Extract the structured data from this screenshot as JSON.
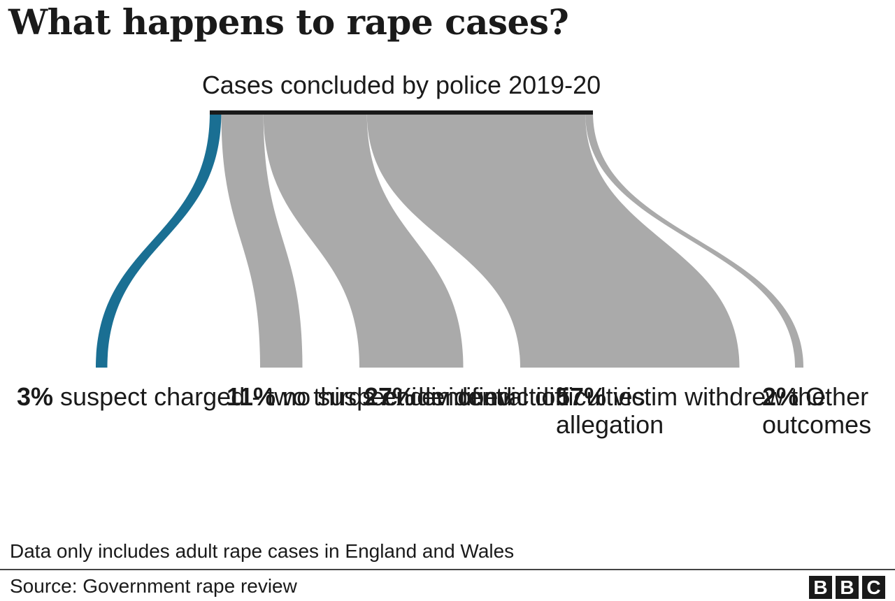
{
  "chart_data": {
    "type": "sankey",
    "title": "What happens to rape cases?",
    "subtitle": "Cases concluded by police 2019-20",
    "unit": "%",
    "colors": {
      "highlight": "#1a6f93",
      "default": "#aaaaaa",
      "source_bar": "#1a1a1a"
    },
    "outcomes": [
      {
        "value": 3,
        "pct_label": "3%",
        "text": "suspect charged - two thirds end in conviction",
        "highlight": true
      },
      {
        "value": 11,
        "pct_label": "11%",
        "text": "no suspect identified",
        "highlight": false
      },
      {
        "value": 27,
        "pct_label": "27%",
        "text": "evidential difficulties",
        "highlight": false
      },
      {
        "value": 57,
        "pct_label": "57%",
        "text": "victim withdrew the allegation",
        "highlight": false
      },
      {
        "value": 2,
        "pct_label": "2%",
        "text": "Other outcomes",
        "highlight": false
      }
    ]
  },
  "footnote": "Data only includes adult rape cases in England and Wales",
  "source": "Source: Government rape review",
  "logo": {
    "letters": [
      "B",
      "B",
      "C"
    ]
  }
}
